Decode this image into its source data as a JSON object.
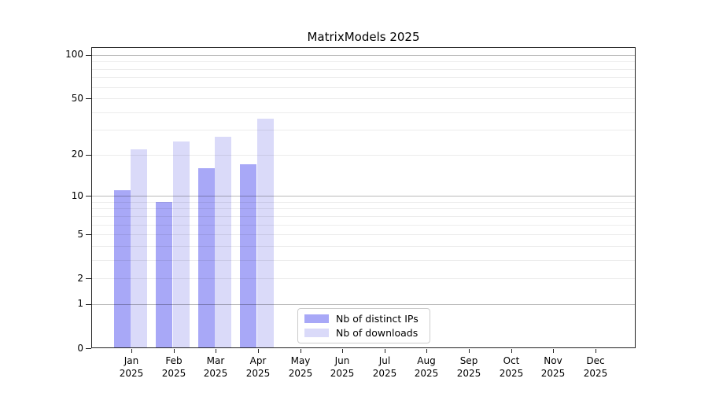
{
  "title": "MatrixModels 2025",
  "chart_data": {
    "type": "bar",
    "title": "MatrixModels 2025",
    "yscale": "log1p",
    "ylim": [
      0,
      113.3
    ],
    "grid": "horizontal",
    "x_tick_labels": [
      [
        "Jan",
        "2025"
      ],
      [
        "Feb",
        "2025"
      ],
      [
        "Mar",
        "2025"
      ],
      [
        "Apr",
        "2025"
      ],
      [
        "May",
        "2025"
      ],
      [
        "Jun",
        "2025"
      ],
      [
        "Jul",
        "2025"
      ],
      [
        "Aug",
        "2025"
      ],
      [
        "Sep",
        "2025"
      ],
      [
        "Oct",
        "2025"
      ],
      [
        "Nov",
        "2025"
      ],
      [
        "Dec",
        "2025"
      ]
    ],
    "yticks": [
      {
        "value": 0,
        "label": "0"
      },
      {
        "value": 1,
        "label": "1"
      },
      {
        "value": 2,
        "label": "2"
      },
      {
        "value": 5,
        "label": "5"
      },
      {
        "value": 10,
        "label": "10"
      },
      {
        "value": 20,
        "label": "20"
      },
      {
        "value": 50,
        "label": "50"
      },
      {
        "value": 100,
        "label": "100"
      }
    ],
    "grid_major_values": [
      1,
      10,
      100
    ],
    "grid_minor_values": [
      2,
      3,
      4,
      5,
      6,
      7,
      8,
      9,
      20,
      30,
      40,
      50,
      60,
      70,
      80,
      90
    ],
    "series": [
      {
        "name": "Nb of distinct IPs",
        "color": "#a8a8f7",
        "values": [
          11,
          9,
          16,
          17,
          0,
          0,
          0,
          0,
          0,
          0,
          0,
          0
        ]
      },
      {
        "name": "Nb of downloads",
        "color": "#dadaf9",
        "values": [
          22,
          25,
          27,
          36,
          0,
          0,
          0,
          0,
          0,
          0,
          0,
          0
        ]
      }
    ],
    "legend": {
      "position": "inside-bottom-center",
      "items": [
        {
          "label": "Nb of distinct IPs",
          "color": "#a8a8f7"
        },
        {
          "label": "Nb of downloads",
          "color": "#dadaf9"
        }
      ]
    }
  },
  "colors": {
    "bar_distinct_ips": "#a8a8f7",
    "bar_downloads": "#dadaf9",
    "grid_major": "rgba(0,0,0,0.28)",
    "grid_minor": "rgba(0,0,0,0.075)",
    "frame": "#222222",
    "legend_border": "#cccccc"
  }
}
